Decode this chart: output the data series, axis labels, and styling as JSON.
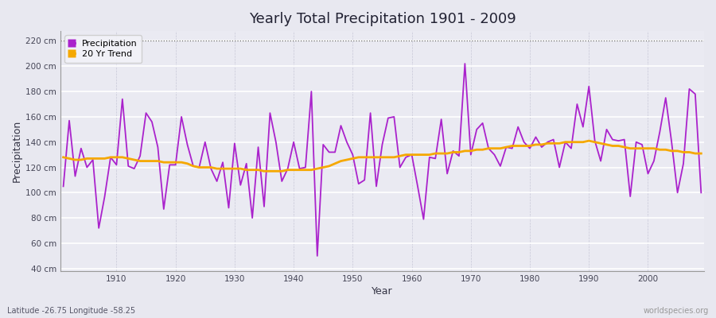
{
  "title": "Yearly Total Precipitation 1901 - 2009",
  "xlabel": "Year",
  "ylabel": "Precipitation",
  "lat_lon_label": "Latitude -26.75 Longitude -58.25",
  "watermark": "worldspecies.org",
  "precip_color": "#aa22cc",
  "trend_color": "#f5a800",
  "bg_color": "#e8e8f0",
  "plot_bg_color": "#eaeaf2",
  "yticks": [
    40,
    60,
    80,
    100,
    120,
    140,
    160,
    180,
    200,
    220
  ],
  "ytick_labels": [
    "40 cm",
    "60 cm",
    "80 cm",
    "100 cm",
    "120 cm",
    "140 cm",
    "160 cm",
    "180 cm",
    "200 cm",
    "220 cm"
  ],
  "ylim": [
    38,
    228
  ],
  "xlim": [
    1900.5,
    2009.5
  ],
  "xticks": [
    1910,
    1920,
    1930,
    1940,
    1950,
    1960,
    1970,
    1980,
    1990,
    2000
  ],
  "years": [
    1901,
    1902,
    1903,
    1904,
    1905,
    1906,
    1907,
    1908,
    1909,
    1910,
    1911,
    1912,
    1913,
    1914,
    1915,
    1916,
    1917,
    1918,
    1919,
    1920,
    1921,
    1922,
    1923,
    1924,
    1925,
    1926,
    1927,
    1928,
    1929,
    1930,
    1931,
    1932,
    1933,
    1934,
    1935,
    1936,
    1937,
    1938,
    1939,
    1940,
    1941,
    1942,
    1943,
    1944,
    1945,
    1946,
    1947,
    1948,
    1949,
    1950,
    1951,
    1952,
    1953,
    1954,
    1955,
    1956,
    1957,
    1958,
    1959,
    1960,
    1961,
    1962,
    1963,
    1964,
    1965,
    1966,
    1967,
    1968,
    1969,
    1970,
    1971,
    1972,
    1973,
    1974,
    1975,
    1976,
    1977,
    1978,
    1979,
    1980,
    1981,
    1982,
    1983,
    1984,
    1985,
    1986,
    1987,
    1988,
    1989,
    1990,
    1991,
    1992,
    1993,
    1994,
    1995,
    1996,
    1997,
    1998,
    1999,
    2000,
    2001,
    2002,
    2003,
    2004,
    2005,
    2006,
    2007,
    2008,
    2009
  ],
  "precipitation": [
    105,
    157,
    113,
    135,
    120,
    126,
    72,
    97,
    128,
    122,
    174,
    121,
    119,
    129,
    163,
    156,
    136,
    87,
    122,
    122,
    160,
    138,
    121,
    120,
    140,
    119,
    109,
    124,
    88,
    139,
    106,
    123,
    80,
    136,
    89,
    163,
    140,
    109,
    119,
    140,
    119,
    120,
    180,
    50,
    138,
    132,
    132,
    153,
    140,
    130,
    107,
    110,
    163,
    105,
    138,
    159,
    160,
    120,
    128,
    130,
    105,
    79,
    128,
    127,
    158,
    115,
    133,
    129,
    202,
    130,
    150,
    155,
    135,
    130,
    121,
    136,
    135,
    152,
    140,
    135,
    144,
    136,
    140,
    142,
    120,
    140,
    135,
    170,
    152,
    184,
    141,
    125,
    150,
    142,
    141,
    142,
    97,
    140,
    138,
    115,
    125,
    148,
    175,
    140,
    100,
    123,
    182,
    178,
    100
  ],
  "trend": [
    128,
    127,
    126,
    126,
    127,
    127,
    127,
    127,
    128,
    128,
    128,
    127,
    126,
    125,
    125,
    125,
    125,
    124,
    124,
    124,
    124,
    123,
    121,
    120,
    120,
    120,
    119,
    119,
    119,
    119,
    119,
    118,
    118,
    118,
    117,
    117,
    117,
    117,
    118,
    118,
    118,
    118,
    118,
    119,
    120,
    121,
    123,
    125,
    126,
    127,
    128,
    128,
    128,
    128,
    128,
    128,
    128,
    129,
    130,
    130,
    130,
    130,
    130,
    131,
    131,
    131,
    132,
    132,
    133,
    133,
    134,
    134,
    135,
    135,
    135,
    136,
    137,
    137,
    137,
    137,
    138,
    138,
    139,
    139,
    139,
    140,
    140,
    140,
    140,
    141,
    140,
    139,
    138,
    137,
    137,
    136,
    135,
    135,
    135,
    135,
    135,
    134,
    134,
    133,
    133,
    132,
    132,
    131,
    131
  ]
}
